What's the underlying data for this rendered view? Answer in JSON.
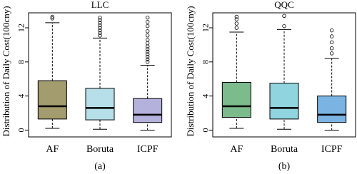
{
  "chart_data": [
    {
      "type": "box",
      "title": "LLC",
      "y_label": "Distribution of Daily Cost(100cny)",
      "caption": "(a)",
      "categories": [
        "AF",
        "Boruta",
        "ICPF"
      ],
      "colors": [
        "#a29c6e",
        "#b7dfe9",
        "#b4b1dd"
      ],
      "boxes": [
        {
          "whislo": 0.2,
          "q1": 1.3,
          "med": 2.8,
          "q3": 5.8,
          "whishi": 12.6,
          "fliers": [
            13.1,
            13.3
          ]
        },
        {
          "whislo": 0.1,
          "q1": 1.2,
          "med": 2.6,
          "q3": 4.9,
          "whishi": 10.8,
          "fliers": [
            11.1,
            11.4,
            11.7,
            12.0,
            12.3,
            12.6,
            12.9,
            13.2
          ]
        },
        {
          "whislo": 0.0,
          "q1": 0.9,
          "med": 1.8,
          "q3": 3.7,
          "whishi": 7.6,
          "fliers": [
            8.0,
            8.3,
            8.6,
            8.9,
            9.2,
            9.5,
            9.8,
            10.2,
            10.6,
            11.1,
            11.6,
            12.2,
            12.7,
            13.2
          ]
        }
      ],
      "ylim": [
        -0.8,
        13.76
      ],
      "yticks": [
        0,
        4,
        8,
        12
      ]
    },
    {
      "type": "box",
      "title": "QQC",
      "y_label": "Distribution of Daily Cost(100cny)",
      "caption": "(b)",
      "categories": [
        "AF",
        "Boruta",
        "ICPF"
      ],
      "colors": [
        "#7cbb8c",
        "#90d4e0",
        "#7bb4e2"
      ],
      "boxes": [
        {
          "whislo": 0.2,
          "q1": 1.5,
          "med": 2.8,
          "q3": 5.6,
          "whishi": 11.5,
          "fliers": [
            12.0,
            12.5,
            13.0,
            13.3
          ]
        },
        {
          "whislo": 0.1,
          "q1": 1.3,
          "med": 2.6,
          "q3": 5.5,
          "whishi": 11.8,
          "fliers": [
            12.2,
            13.4
          ]
        },
        {
          "whislo": 0.0,
          "q1": 0.9,
          "med": 1.8,
          "q3": 4.0,
          "whishi": 8.4,
          "fliers": [
            9.0,
            9.6,
            10.3,
            11.0,
            11.7
          ]
        }
      ],
      "ylim": [
        -0.8,
        13.76
      ],
      "yticks": [
        0,
        4,
        8,
        12
      ]
    }
  ]
}
